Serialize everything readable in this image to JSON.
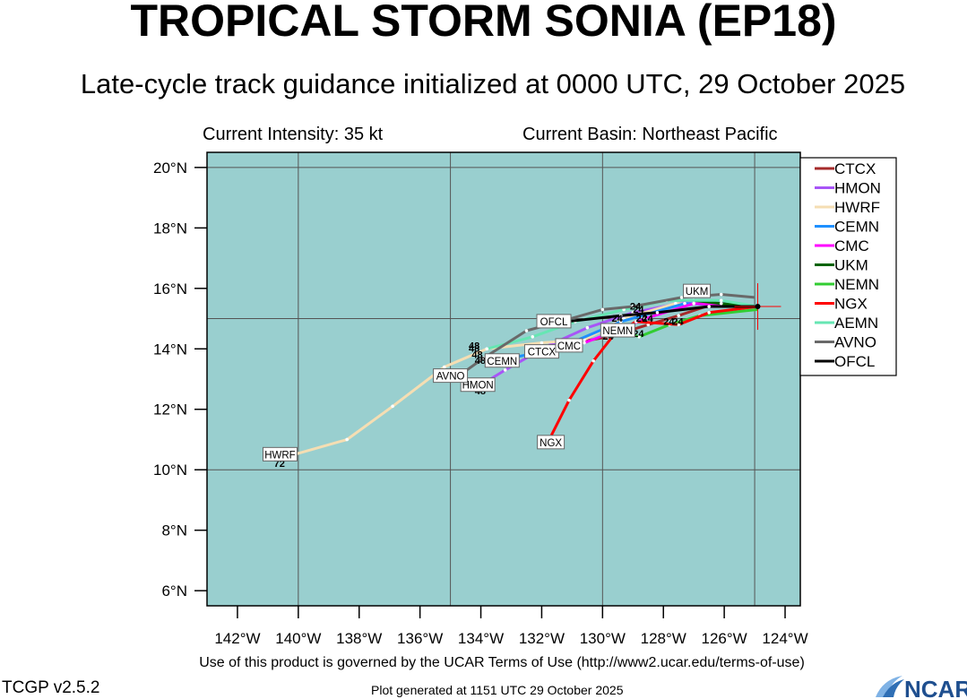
{
  "header": {
    "title": "TROPICAL STORM SONIA (EP18)",
    "subtitle": "Late-cycle track guidance initialized at 0000 UTC, 29 October 2025",
    "intensity": "Current Intensity: 35 kt",
    "basin": "Current Basin: Northeast Pacific"
  },
  "footer": {
    "terms": "Use of this product is governed by the UCAR Terms of Use (http://www2.ucar.edu/terms-of-use)",
    "version": "TCGP v2.5.2",
    "generated": "Plot generated at 1151 UTC   29 October 2025",
    "logo_text": "NCAR"
  },
  "colors": {
    "ocean": "#99cfcf",
    "grid": "#555555",
    "CTCX": "#a52a2a",
    "HMON": "#a855f7",
    "HWRF": "#f5deb3",
    "CEMN": "#1e90ff",
    "CMC": "#ff00ff",
    "UKM": "#006400",
    "NEMN": "#32cd32",
    "NGX": "#ff0000",
    "AEMN": "#66e6b3",
    "AVNO": "#696969",
    "OFCL": "#000000"
  },
  "chart_data": {
    "type": "line",
    "xlabel": "",
    "ylabel": "",
    "xlim": [
      -143,
      -123.5
    ],
    "ylim": [
      5.5,
      20.5
    ],
    "x_ticks": [
      -142,
      -140,
      -138,
      -136,
      -134,
      -132,
      -130,
      -128,
      -126,
      -124
    ],
    "x_tick_labels": [
      "142°W",
      "140°W",
      "138°W",
      "136°W",
      "134°W",
      "132°W",
      "130°W",
      "128°W",
      "126°W",
      "124°W"
    ],
    "y_ticks": [
      6,
      8,
      10,
      12,
      14,
      16,
      18,
      20
    ],
    "y_tick_labels": [
      "6°N",
      "8°N",
      "10°N",
      "12°N",
      "14°N",
      "16°N",
      "18°N",
      "20°N"
    ],
    "grid_lon": [
      -140,
      -135,
      -130,
      -125
    ],
    "grid_lat": [
      10,
      15,
      20
    ],
    "legend_position": "right",
    "current_position": [
      -124.9,
      15.4
    ],
    "series": [
      {
        "name": "CTCX",
        "label": "CTCX",
        "points": [
          [
            -124.9,
            15.4
          ],
          [
            -126.6,
            15.4
          ],
          [
            -127.5,
            15.1
          ],
          [
            -128.5,
            14.8
          ],
          [
            -129.8,
            14.4
          ],
          [
            -131.5,
            14.1
          ]
        ],
        "label_at": [
          -132,
          13.9
        ]
      },
      {
        "name": "HMON",
        "label": "HMON",
        "points": [
          [
            -124.9,
            15.4
          ],
          [
            -127,
            15.6
          ],
          [
            -129,
            15.2
          ],
          [
            -130.5,
            14.7
          ],
          [
            -131.8,
            14.1
          ],
          [
            -133.2,
            13.3
          ],
          [
            -134,
            12.8
          ]
        ],
        "label_at": [
          -134.1,
          12.8
        ]
      },
      {
        "name": "HWRF",
        "label": "HWRF",
        "points": [
          [
            -124.9,
            15.4
          ],
          [
            -127.6,
            15.5
          ],
          [
            -129.3,
            15.0
          ],
          [
            -130.6,
            14.3
          ],
          [
            -132,
            14.2
          ],
          [
            -133.8,
            14.0
          ],
          [
            -135.2,
            13.4
          ],
          [
            -136.9,
            12.1
          ],
          [
            -138.4,
            11.0
          ],
          [
            -140.5,
            10.4
          ]
        ],
        "label_at": [
          -140.6,
          10.5
        ]
      },
      {
        "name": "CEMN",
        "label": "CEMN",
        "points": [
          [
            -124.9,
            15.4
          ],
          [
            -127.3,
            15.5
          ],
          [
            -129.4,
            14.9
          ],
          [
            -130.8,
            14.3
          ],
          [
            -132,
            13.9
          ],
          [
            -133,
            13.7
          ]
        ],
        "label_at": [
          -133.3,
          13.6
        ]
      },
      {
        "name": "CMC",
        "label": "CMC",
        "points": [
          [
            -124.9,
            15.4
          ],
          [
            -127,
            15.5
          ],
          [
            -128.6,
            15.0
          ],
          [
            -129.8,
            14.5
          ],
          [
            -130.6,
            14.2
          ]
        ],
        "label_at": [
          -131.1,
          14.1
        ]
      },
      {
        "name": "UKM",
        "label": "UKM",
        "points": [
          [
            -124.9,
            15.4
          ],
          [
            -126.1,
            15.5
          ],
          [
            -127,
            15.6
          ]
        ],
        "label_at": [
          -126.9,
          15.9
        ]
      },
      {
        "name": "NEMN",
        "label": "NEMN",
        "points": [
          [
            -124.9,
            15.3
          ],
          [
            -126.8,
            15.1
          ],
          [
            -127.8,
            14.8
          ],
          [
            -128.8,
            14.4
          ],
          [
            -129.4,
            14.6
          ]
        ],
        "label_at": [
          -129.5,
          14.6
        ]
      },
      {
        "name": "NGX",
        "label": "NGX",
        "points": [
          [
            -124.9,
            15.4
          ],
          [
            -126.5,
            15.2
          ],
          [
            -127.5,
            14.8
          ],
          [
            -128.9,
            14.9
          ],
          [
            -129.6,
            14.5
          ],
          [
            -130.3,
            13.6
          ],
          [
            -131.1,
            12.3
          ],
          [
            -131.7,
            11.1
          ]
        ],
        "label_at": [
          -131.7,
          10.9
        ]
      },
      {
        "name": "AEMN",
        "label": "",
        "points": [
          [
            -124.9,
            15.4
          ],
          [
            -126.1,
            15.6
          ],
          [
            -127.9,
            15.6
          ],
          [
            -129.3,
            15.3
          ],
          [
            -130.9,
            14.9
          ],
          [
            -132.3,
            14.4
          ],
          [
            -133.8,
            14.0
          ]
        ],
        "label_at": null
      },
      {
        "name": "AVNO",
        "label": "AVNO",
        "points": [
          [
            -125,
            15.7
          ],
          [
            -126.1,
            15.8
          ],
          [
            -127.4,
            15.7
          ],
          [
            -129,
            15.4
          ],
          [
            -130,
            15.3
          ],
          [
            -131.4,
            14.9
          ],
          [
            -132.5,
            14.6
          ],
          [
            -133.9,
            13.7
          ],
          [
            -134.6,
            13.2
          ]
        ],
        "label_at": [
          -135,
          13.1
        ]
      },
      {
        "name": "OFCL",
        "label": "OFCL",
        "points": [
          [
            -124.9,
            15.4
          ],
          [
            -126.5,
            15.4
          ],
          [
            -128.2,
            15.2
          ],
          [
            -129.4,
            15.1
          ],
          [
            -131.2,
            14.9
          ]
        ],
        "label_at": [
          -131.6,
          14.9
        ]
      }
    ],
    "hour_labels": [
      {
        "text": "24",
        "at": [
          -129.7,
          14.9
        ]
      },
      {
        "text": "24",
        "at": [
          -129.5,
          14.4
        ]
      },
      {
        "text": "24",
        "at": [
          -129.0,
          14.4
        ]
      },
      {
        "text": "24",
        "at": [
          -128.9,
          14.9
        ]
      },
      {
        "text": "24",
        "at": [
          -129.0,
          15.2
        ]
      },
      {
        "text": "24",
        "at": [
          -129.1,
          15.3
        ]
      },
      {
        "text": "24",
        "at": [
          -128.0,
          14.8
        ]
      },
      {
        "text": "24",
        "at": [
          -127.7,
          14.8
        ]
      },
      {
        "text": "24",
        "at": [
          -128.7,
          14.9
        ]
      },
      {
        "text": "24",
        "at": [
          -130.0,
          14.3
        ]
      },
      {
        "text": "48",
        "at": [
          -134.4,
          13.9
        ]
      },
      {
        "text": "48",
        "at": [
          -134.3,
          13.7
        ]
      },
      {
        "text": "48",
        "at": [
          -134.2,
          13.5
        ]
      },
      {
        "text": "48",
        "at": [
          -134.4,
          14.0
        ]
      },
      {
        "text": "48",
        "at": [
          -134.2,
          12.5
        ]
      },
      {
        "text": "72",
        "at": [
          -140.8,
          10.1
        ]
      }
    ]
  }
}
